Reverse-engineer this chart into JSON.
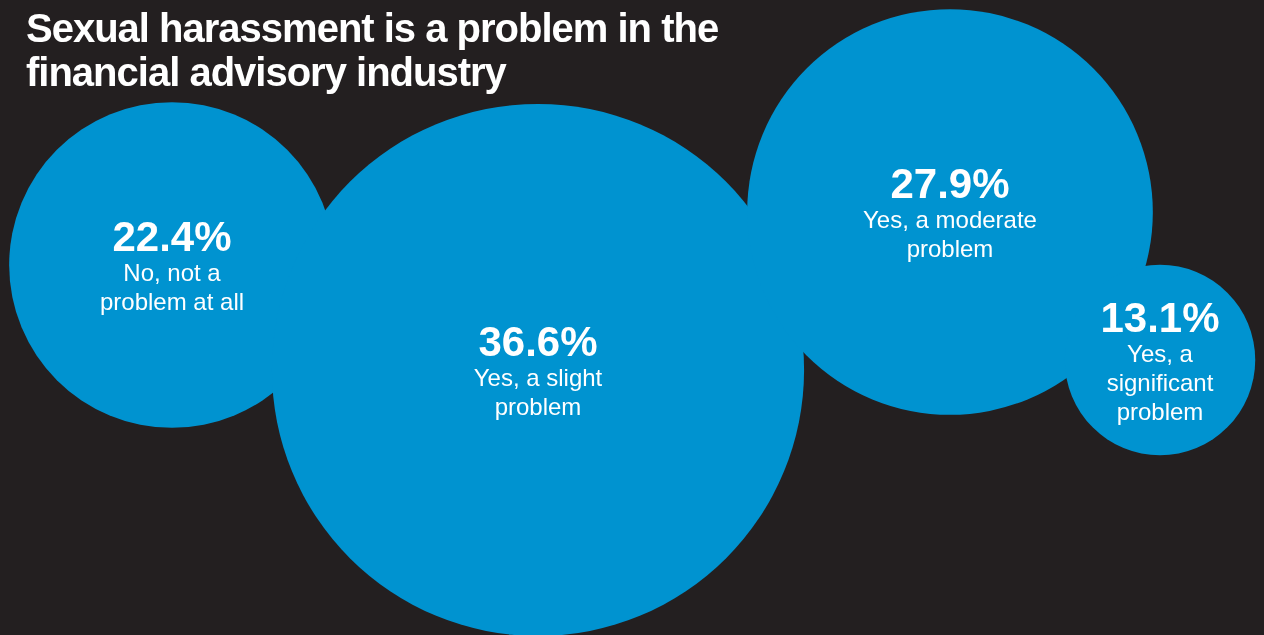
{
  "chart_data": {
    "type": "other",
    "title": "Sexual harassment is a problem in the financial advisory industry",
    "categories": [
      "No, not a problem at all",
      "Yes, a slight problem",
      "Yes, a moderate problem",
      "Yes, a significant problem"
    ],
    "values": [
      22.4,
      36.6,
      27.9,
      13.1
    ],
    "value_labels": [
      "22.4%",
      "36.6%",
      "27.9%",
      "13.1%"
    ],
    "color": "#0093d0"
  }
}
